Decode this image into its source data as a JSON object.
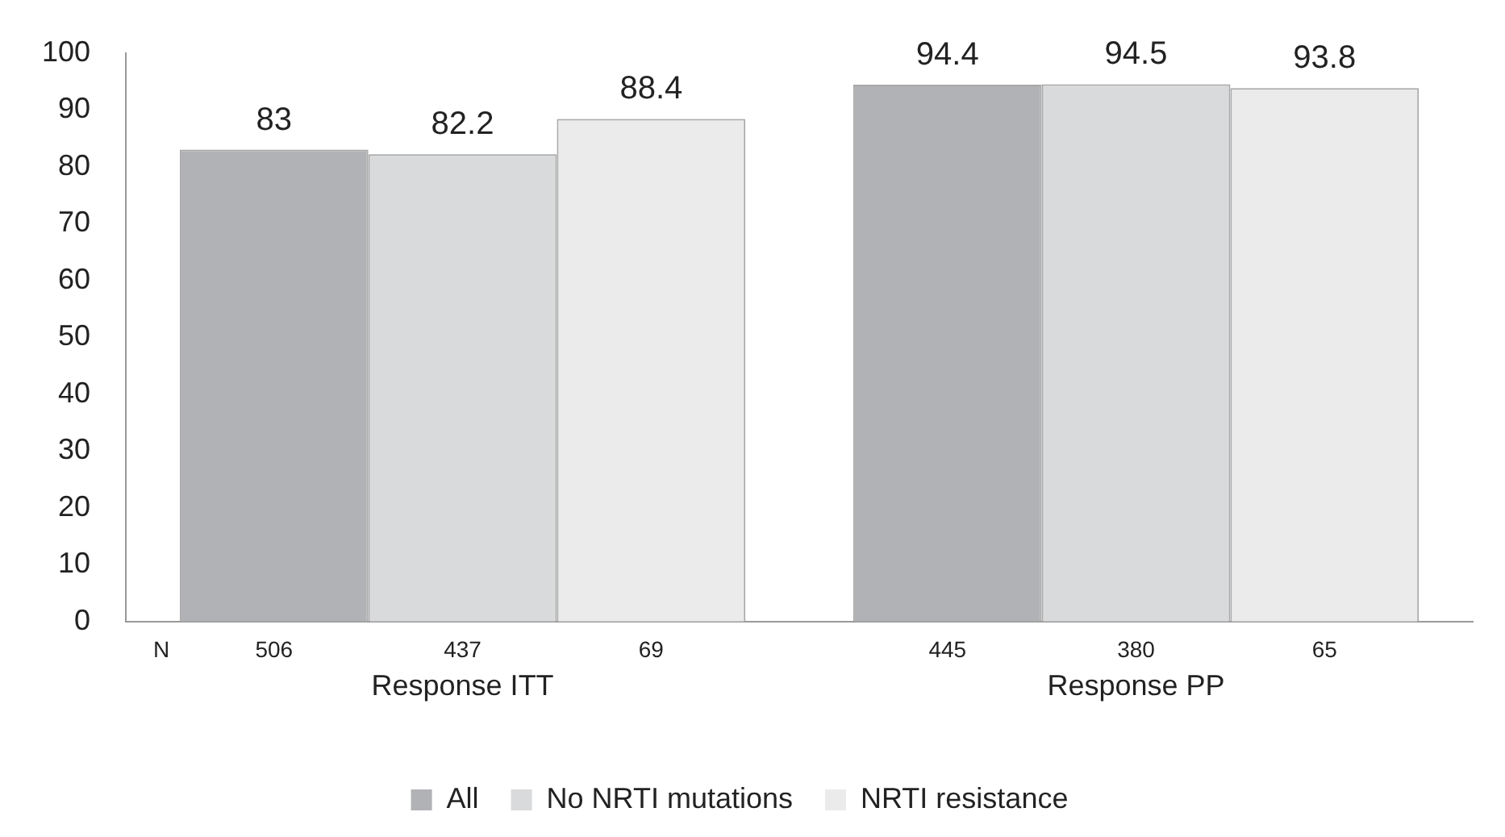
{
  "chart_data": {
    "type": "bar",
    "categories": [
      "Response ITT",
      "Response PP"
    ],
    "series": [
      {
        "name": "All",
        "color": "#b1b2b5",
        "values": [
          83,
          94.4
        ]
      },
      {
        "name": "No NRTI mutations",
        "color": "#d9dadc",
        "values": [
          82.2,
          94.5
        ]
      },
      {
        "name": "NRTI resistance",
        "color": "#ebebeb",
        "values": [
          88.4,
          93.8
        ]
      }
    ],
    "ylim": [
      0,
      100
    ],
    "yticks": [
      0,
      10,
      20,
      30,
      40,
      50,
      60,
      70,
      80,
      90,
      100
    ],
    "grid": false,
    "legend": "bottom",
    "data_labels": true,
    "annotations": [
      "N",
      "506",
      "437",
      "69",
      "445",
      "380",
      "65"
    ]
  }
}
